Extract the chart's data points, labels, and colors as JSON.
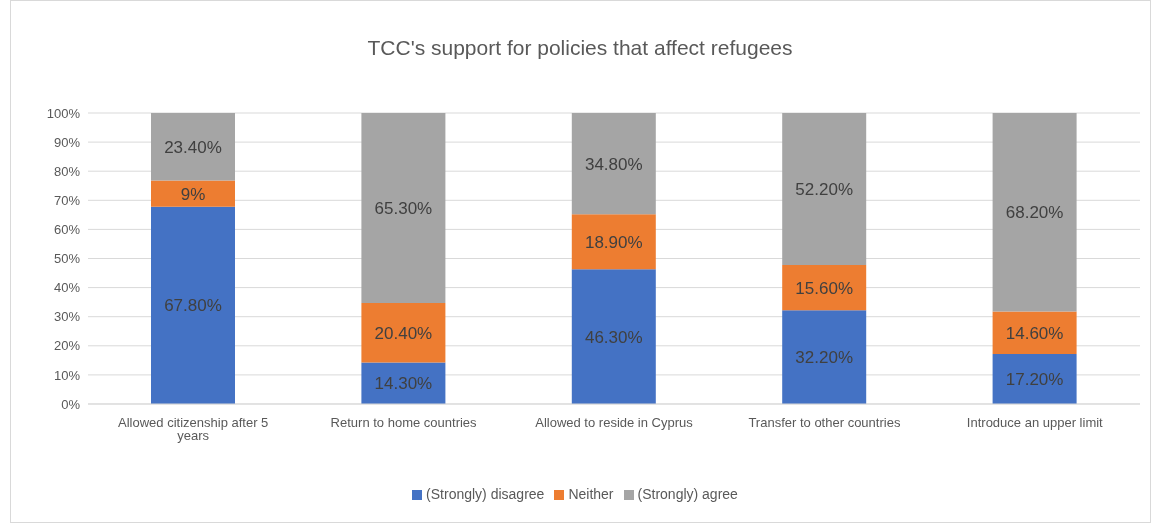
{
  "chart_data": {
    "type": "bar",
    "title": "TCC's support for policies that affect refugees",
    "categories": [
      "Allowed citizenship after 5 years",
      "Return to home countries",
      "Allowed to reside in Cyprus",
      "Transfer to other countries",
      "Introduce an upper limit"
    ],
    "series": [
      {
        "name": "(Strongly) disagree",
        "color": "#4472c4",
        "values": [
          67.8,
          14.3,
          46.3,
          32.2,
          17.2
        ],
        "value_labels": [
          "67.80%",
          "14.30%",
          "46.30%",
          "32.20%",
          "17.20%"
        ]
      },
      {
        "name": "Neither",
        "color": "#ed7d31",
        "values": [
          9,
          20.4,
          18.9,
          15.6,
          14.6
        ],
        "value_labels": [
          "9%",
          "20.40%",
          "18.90%",
          "15.60%",
          "14.60%"
        ]
      },
      {
        "name": "(Strongly) agree",
        "color": "#a5a5a5",
        "values": [
          23.4,
          65.3,
          34.8,
          52.2,
          68.2
        ],
        "value_labels": [
          "23.40%",
          "65.30%",
          "34.80%",
          "52.20%",
          "68.20%"
        ]
      }
    ],
    "stacked": true,
    "ylim": [
      0,
      100
    ],
    "yticks": [
      {
        "value": 0,
        "label": "0%"
      },
      {
        "value": 10,
        "label": "10%"
      },
      {
        "value": 20,
        "label": "20%"
      },
      {
        "value": 30,
        "label": "30%"
      },
      {
        "value": 40,
        "label": "40%"
      },
      {
        "value": 50,
        "label": "50%"
      },
      {
        "value": 60,
        "label": "60%"
      },
      {
        "value": 70,
        "label": "70%"
      },
      {
        "value": 80,
        "label": "80%"
      },
      {
        "value": 90,
        "label": "90%"
      },
      {
        "value": 100,
        "label": "100%"
      }
    ],
    "grid": "y",
    "legend": "bottom"
  }
}
